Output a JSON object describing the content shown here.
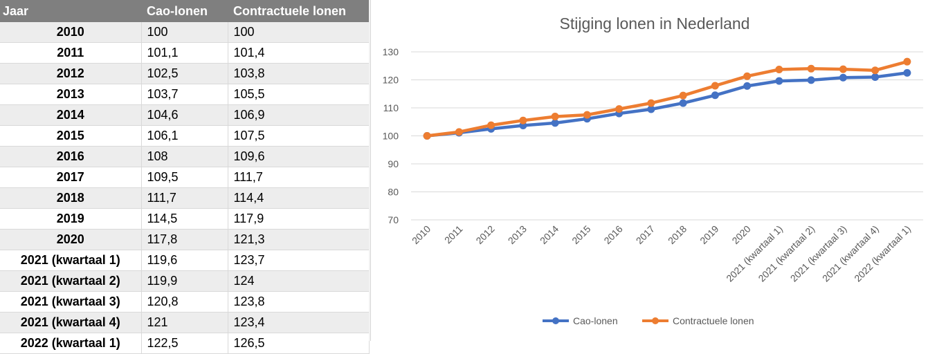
{
  "table": {
    "headers": [
      "Jaar",
      "Cao-lonen",
      "Contractuele lonen"
    ],
    "rows": [
      [
        "2010",
        "100",
        "100"
      ],
      [
        "2011",
        "101,1",
        "101,4"
      ],
      [
        "2012",
        "102,5",
        "103,8"
      ],
      [
        "2013",
        "103,7",
        "105,5"
      ],
      [
        "2014",
        "104,6",
        "106,9"
      ],
      [
        "2015",
        "106,1",
        "107,5"
      ],
      [
        "2016",
        "108",
        "109,6"
      ],
      [
        "2017",
        "109,5",
        "111,7"
      ],
      [
        "2018",
        "111,7",
        "114,4"
      ],
      [
        "2019",
        "114,5",
        "117,9"
      ],
      [
        "2020",
        "117,8",
        "121,3"
      ],
      [
        "2021 (kwartaal 1)",
        "119,6",
        "123,7"
      ],
      [
        "2021 (kwartaal 2)",
        "119,9",
        "124"
      ],
      [
        "2021 (kwartaal 3)",
        "120,8",
        "123,8"
      ],
      [
        "2021 (kwartaal 4)",
        "121",
        "123,4"
      ],
      [
        "2022 (kwartaal 1)",
        "122,5",
        "126,5"
      ]
    ]
  },
  "chart_data": {
    "type": "line",
    "title": "Stijging lonen in Nederland",
    "xlabel": "",
    "ylabel": "",
    "categories": [
      "2010",
      "2011",
      "2012",
      "2013",
      "2014",
      "2015",
      "2016",
      "2017",
      "2018",
      "2019",
      "2020",
      "2021 (kwartaal 1)",
      "2021 (kwartaal 2)",
      "2021 (kwartaal 3)",
      "2021 (kwartaal 4)",
      "2022 (kwartaal 1)"
    ],
    "series": [
      {
        "name": "Cao-lonen",
        "color": "#4472c4",
        "values": [
          100,
          101.1,
          102.5,
          103.7,
          104.6,
          106.1,
          108,
          109.5,
          111.7,
          114.5,
          117.8,
          119.6,
          119.9,
          120.8,
          121,
          122.5
        ]
      },
      {
        "name": "Contractuele lonen",
        "color": "#ed7d31",
        "values": [
          100,
          101.4,
          103.8,
          105.5,
          106.9,
          107.5,
          109.6,
          111.7,
          114.4,
          117.9,
          121.3,
          123.7,
          124,
          123.8,
          123.4,
          126.5
        ]
      }
    ],
    "ylim": [
      70,
      130
    ],
    "yticks": [
      70,
      80,
      90,
      100,
      110,
      120,
      130
    ],
    "grid": true,
    "legend": "bottom",
    "markers": true
  }
}
